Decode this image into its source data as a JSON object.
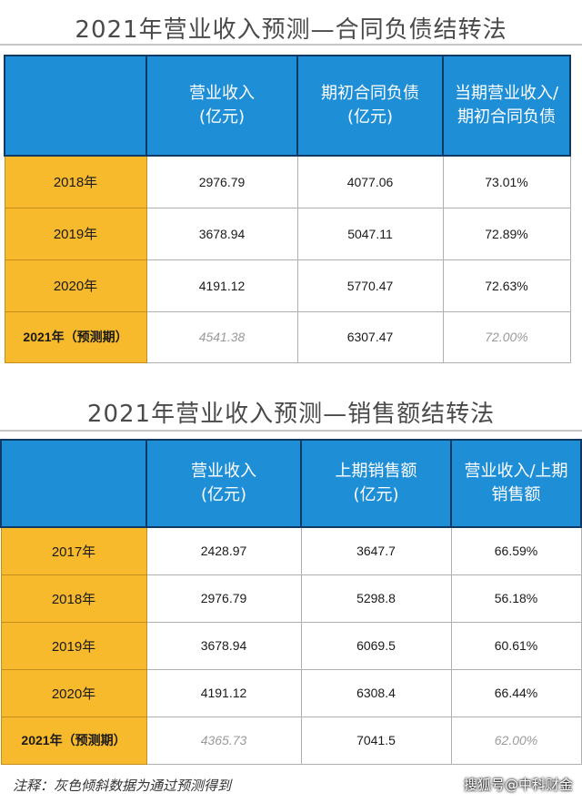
{
  "table1": {
    "title": "2021年营业收入预测—合同负债结转法",
    "headers": [
      "",
      "营业收入\n(亿元)",
      "期初合同负债\n(亿元)",
      "当期营业收入/\n期初合同负债"
    ],
    "rows": [
      {
        "year": "2018年",
        "c1": "2976.79",
        "c2": "4077.06",
        "c3": "73.01%"
      },
      {
        "year": "2019年",
        "c1": "3678.94",
        "c2": "5047.11",
        "c3": "72.89%"
      },
      {
        "year": "2020年",
        "c1": "4191.12",
        "c2": "5770.47",
        "c3": "72.63%"
      },
      {
        "year": "2021年（预测期）",
        "c1": "4541.38",
        "c2": "6307.47",
        "c3": "72.00%"
      }
    ]
  },
  "table2": {
    "title": "2021年营业收入预测—销售额结转法",
    "headers": [
      "",
      "营业收入\n(亿元)",
      "上期销售额\n(亿元)",
      "营业收入/上期\n销售额"
    ],
    "rows": [
      {
        "year": "2017年",
        "c1": "2428.97",
        "c2": "3647.7",
        "c3": "66.59%"
      },
      {
        "year": "2018年",
        "c1": "2976.79",
        "c2": "5298.8",
        "c3": "56.18%"
      },
      {
        "year": "2019年",
        "c1": "3678.94",
        "c2": "6069.5",
        "c3": "60.61%"
      },
      {
        "year": "2020年",
        "c1": "4191.12",
        "c2": "6308.4",
        "c3": "66.44%"
      },
      {
        "year": "2021年（预测期）",
        "c1": "4365.73",
        "c2": "7041.5",
        "c3": "62.00%"
      }
    ]
  },
  "note": "注释：灰色倾斜数据为通过预测得到",
  "watermark": "搜狐号@中科财金"
}
